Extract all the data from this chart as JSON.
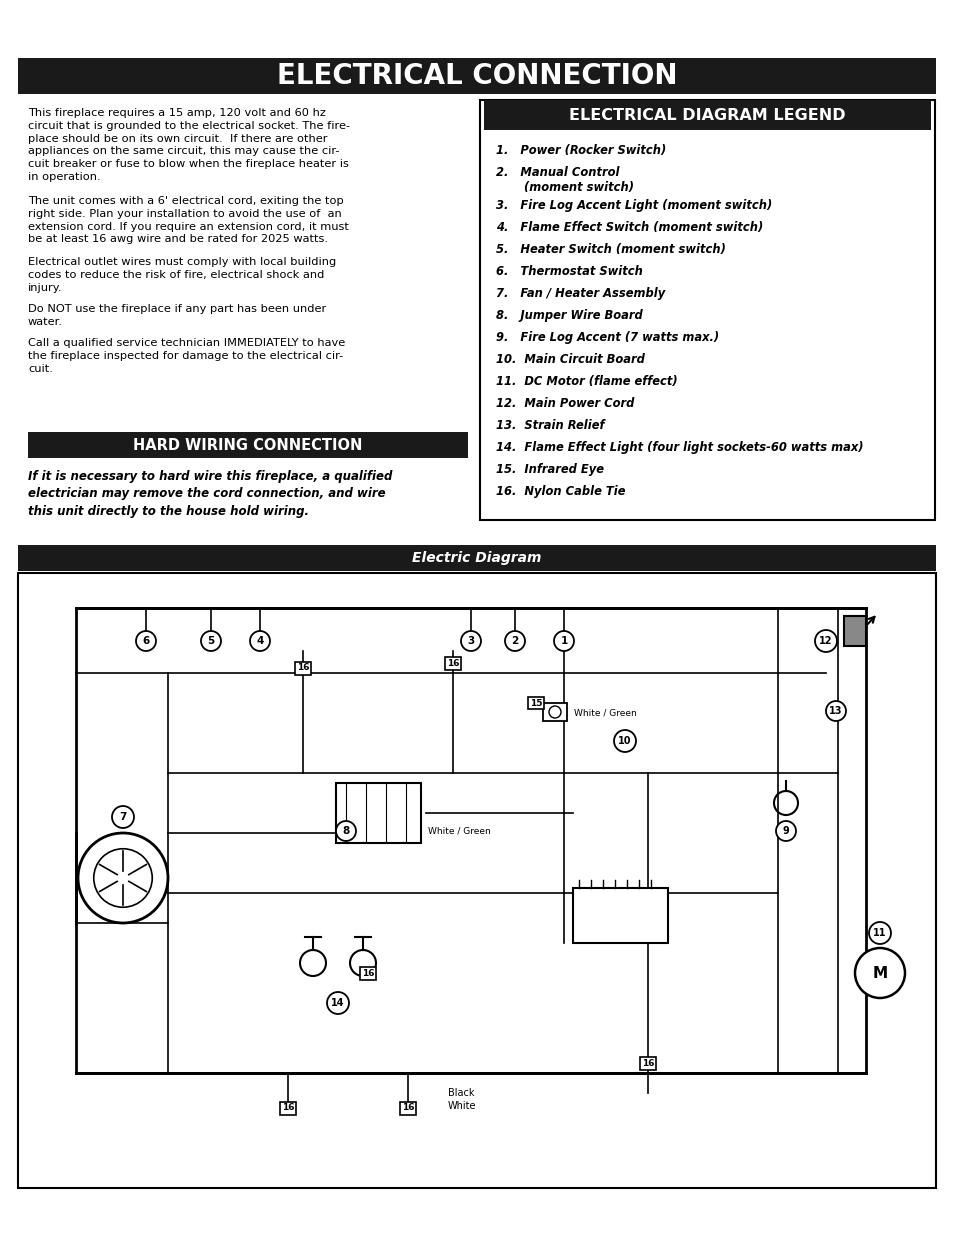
{
  "title": "ELECTRICAL CONNECTION",
  "bg_color": "#ffffff",
  "title_bg": "#1a1a1a",
  "title_fg": "#ffffff",
  "legend_title": "ELECTRICAL DIAGRAM LEGEND",
  "legend_items": [
    "1.   Power (Rocker Switch)",
    "2.   Manual Control\n       (moment switch)",
    "3.   Fire Log Accent Light (moment switch)",
    "4.   Flame Effect Switch (moment switch)",
    "5.   Heater Switch (moment switch)",
    "6.   Thermostat Switch",
    "7.   Fan / Heater Assembly",
    "8.   Jumper Wire Board",
    "9.   Fire Log Accent (7 watts max.)",
    "10.  Main Circuit Board",
    "11.  DC Motor (flame effect)",
    "12.  Main Power Cord",
    "13.  Strain Relief",
    "14.  Flame Effect Light (four light sockets-60 watts max)",
    "15.  Infrared Eye",
    "16.  Nylon Cable Tie"
  ],
  "left_text_paragraphs": [
    "This fireplace requires a 15 amp, 120 volt and 60 hz\ncircuit that is grounded to the electrical socket. The fire-\nplace should be on its own circuit.  If there are other\nappliances on the same circuit, this may cause the cir-\ncuit breaker or fuse to blow when the fireplace heater is\nin operation.",
    "The unit comes with a 6' electrical cord, exiting the top\nright side. Plan your installation to avoid the use of  an\nextension cord. If you require an extension cord, it must\nbe at least 16 awg wire and be rated for 2025 watts.",
    "Electrical outlet wires must comply with local building\ncodes to reduce the risk of fire, electrical shock and\ninjury.",
    "Do NOT use the fireplace if any part has been under\nwater.",
    "Call a qualified service technician IMMEDIATELY to have\nthe fireplace inspected for damage to the electrical cir-\ncuit."
  ],
  "hard_wiring_title": "HARD WIRING CONNECTION",
  "hard_wiring_text": "If it is necessary to hard wire this fireplace, a qualified\nelectrician may remove the cord connection, and wire\nthis unit directly to the house hold wiring.",
  "diagram_title": "Electric Diagram",
  "diagram_title_bg": "#1a1a1a",
  "diagram_title_fg": "#ffffff"
}
